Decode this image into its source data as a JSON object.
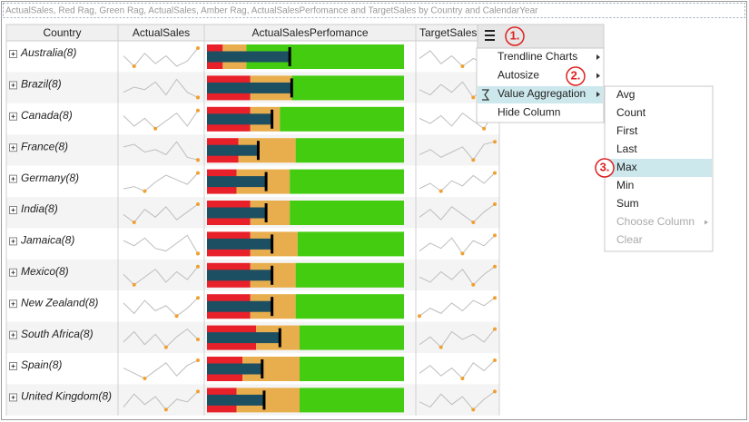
{
  "header": {
    "title": "ActualSales, Red Rag, Green Rag, ActualSales, Amber Rag, ActualSalesPerfomance and TargetSales by Country and CalendarYear"
  },
  "table": {
    "columns": [
      "Country",
      "ActualSales",
      "ActualSalesPerfomance",
      "TargetSales"
    ],
    "rows": [
      {
        "country": "Australia(8)",
        "actual_sales": [
          6,
          2,
          7,
          3,
          6,
          2,
          4,
          9
        ],
        "performance": {
          "red": 8,
          "amber": 12,
          "green": 80,
          "actual": 42
        },
        "target_sales": [
          5,
          8,
          3,
          6,
          2,
          5,
          3,
          9
        ]
      },
      {
        "country": "Brazil(8)",
        "actual_sales": [
          4,
          6,
          5,
          8,
          3,
          9,
          4,
          2
        ],
        "performance": {
          "red": 22,
          "amber": 21,
          "green": 57,
          "actual": 43
        },
        "target_sales": [
          5,
          3,
          7,
          4,
          8,
          2,
          6,
          9
        ]
      },
      {
        "country": "Canada(8)",
        "actual_sales": [
          7,
          3,
          6,
          2,
          5,
          8,
          3,
          9
        ],
        "performance": {
          "red": 22,
          "amber": 15,
          "green": 63,
          "actual": 33
        },
        "target_sales": [
          6,
          4,
          7,
          3,
          8,
          5,
          2,
          9
        ]
      },
      {
        "country": "France(8)",
        "actual_sales": [
          6,
          7,
          4,
          5,
          3,
          8,
          2,
          1
        ],
        "performance": {
          "red": 16,
          "amber": 29,
          "green": 55,
          "actual": 26
        },
        "target_sales": [
          4,
          6,
          3,
          5,
          7,
          2,
          8,
          9
        ]
      },
      {
        "country": "Germany(8)",
        "actual_sales": [
          2,
          3,
          1,
          5,
          8,
          6,
          4,
          9
        ],
        "performance": {
          "red": 15,
          "amber": 27,
          "green": 58,
          "actual": 30
        },
        "target_sales": [
          3,
          5,
          2,
          6,
          4,
          8,
          5,
          9
        ]
      },
      {
        "country": "India(8)",
        "actual_sales": [
          5,
          2,
          7,
          4,
          8,
          3,
          6,
          9
        ],
        "performance": {
          "red": 22,
          "amber": 20,
          "green": 58,
          "actual": 30
        },
        "target_sales": [
          4,
          7,
          3,
          8,
          5,
          2,
          6,
          9
        ]
      },
      {
        "country": "Jamaica(8)",
        "actual_sales": [
          7,
          5,
          8,
          4,
          3,
          6,
          9,
          2
        ],
        "performance": {
          "red": 22,
          "amber": 24,
          "green": 54,
          "actual": 33
        },
        "target_sales": [
          3,
          6,
          4,
          8,
          2,
          7,
          5,
          9
        ]
      },
      {
        "country": "Mexico(8)",
        "actual_sales": [
          6,
          2,
          5,
          8,
          3,
          7,
          4,
          9
        ],
        "performance": {
          "red": 22,
          "amber": 23,
          "green": 55,
          "actual": 33
        },
        "target_sales": [
          5,
          3,
          7,
          4,
          8,
          2,
          6,
          9
        ]
      },
      {
        "country": "New Zealand(8)",
        "actual_sales": [
          7,
          3,
          8,
          4,
          6,
          2,
          5,
          9
        ],
        "performance": {
          "red": 22,
          "amber": 23,
          "green": 55,
          "actual": 33
        },
        "target_sales": [
          2,
          5,
          3,
          7,
          4,
          8,
          6,
          9
        ]
      },
      {
        "country": "South Africa(8)",
        "actual_sales": [
          4,
          8,
          3,
          7,
          2,
          6,
          9,
          5
        ],
        "performance": {
          "red": 25,
          "amber": 22,
          "green": 53,
          "actual": 37
        },
        "target_sales": [
          3,
          6,
          2,
          8,
          5,
          7,
          4,
          9
        ]
      },
      {
        "country": "Spain(8)",
        "actual_sales": [
          6,
          4,
          2,
          5,
          8,
          3,
          7,
          9
        ],
        "performance": {
          "red": 18,
          "amber": 29,
          "green": 53,
          "actual": 28
        },
        "target_sales": [
          4,
          7,
          3,
          6,
          2,
          8,
          5,
          9
        ]
      },
      {
        "country": "United Kingdom(8)",
        "actual_sales": [
          3,
          8,
          4,
          7,
          2,
          6,
          5,
          9
        ],
        "performance": {
          "red": 15,
          "amber": 32,
          "green": 53,
          "actual": 29
        },
        "target_sales": [
          5,
          3,
          8,
          4,
          7,
          2,
          6,
          9
        ]
      }
    ]
  },
  "menu": {
    "items": [
      "Trendline Charts",
      "Autosize",
      "Value Aggregation",
      "Hide Column"
    ],
    "submenu": [
      "Avg",
      "Count",
      "First",
      "Last",
      "Max",
      "Min",
      "Sum",
      "Choose Column",
      "Clear"
    ]
  },
  "annotations": [
    "1.",
    "2.",
    "3."
  ]
}
